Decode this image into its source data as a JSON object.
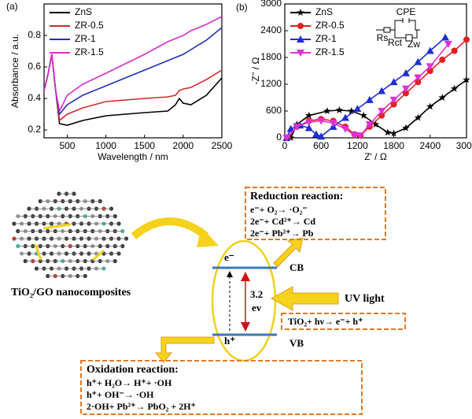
{
  "chart_data": [
    {
      "type": "line",
      "panel": "(a)",
      "x_label": "Wavelength / nm",
      "y_label": "Absorbance / a.u.",
      "x": [
        200,
        250,
        300,
        350,
        400,
        500,
        700,
        1000,
        1500,
        1800,
        1900,
        1950,
        2000,
        2100,
        2300,
        2500
      ],
      "series": [
        {
          "name": "ZnS",
          "color": "#000000",
          "values": [
            0.45,
            0.55,
            0.68,
            0.45,
            0.24,
            0.23,
            0.26,
            0.29,
            0.31,
            0.32,
            0.36,
            0.4,
            0.37,
            0.36,
            0.42,
            0.53
          ]
        },
        {
          "name": "ZR-0.5",
          "color": "#d42a2a",
          "values": [
            0.45,
            0.55,
            0.68,
            0.45,
            0.26,
            0.3,
            0.34,
            0.38,
            0.4,
            0.41,
            0.42,
            0.45,
            0.46,
            0.47,
            0.52,
            0.58
          ]
        },
        {
          "name": "ZR-1",
          "color": "#1f2fb8",
          "values": [
            0.45,
            0.55,
            0.68,
            0.45,
            0.3,
            0.36,
            0.42,
            0.48,
            0.58,
            0.64,
            0.66,
            0.67,
            0.68,
            0.71,
            0.77,
            0.85
          ]
        },
        {
          "name": "ZR-1.5",
          "color": "#d62fc9",
          "values": [
            0.45,
            0.55,
            0.68,
            0.45,
            0.32,
            0.42,
            0.49,
            0.56,
            0.68,
            0.76,
            0.78,
            0.79,
            0.8,
            0.83,
            0.87,
            0.92
          ]
        }
      ],
      "xlim": [
        200,
        2500
      ],
      "xticks": [
        500,
        1000,
        1500,
        2000,
        2500
      ],
      "ylim": [
        0.15,
        1.0
      ],
      "yticks": [
        0.2,
        0.4,
        0.6,
        0.8
      ],
      "grid": false,
      "legend": "top-left"
    },
    {
      "type": "line",
      "panel": "(b)",
      "x_label": "Z' / Ω",
      "y_label": "-Z'' / Ω",
      "annotations": [
        "CPE",
        "Rs",
        "Rct",
        "Zw"
      ],
      "series": [
        {
          "name": "ZnS",
          "color": "#000000",
          "marker": "star",
          "x": [
            100,
            200,
            400,
            700,
            900,
            1100,
            1300,
            1500,
            1700,
            1800,
            2000,
            2200,
            2400,
            2600,
            2800,
            3000
          ],
          "values": [
            0,
            300,
            500,
            600,
            620,
            600,
            500,
            300,
            120,
            100,
            220,
            450,
            700,
            900,
            1100,
            1300
          ]
        },
        {
          "name": "ZR-0.5",
          "color": "#e01f1f",
          "marker": "circle",
          "x": [
            50,
            200,
            400,
            600,
            800,
            1000,
            1150,
            1250,
            1400,
            1600,
            1800,
            2000,
            2200,
            2400,
            2600,
            2800,
            3000
          ],
          "values": [
            0,
            250,
            380,
            420,
            380,
            250,
            80,
            50,
            250,
            500,
            750,
            1000,
            1250,
            1500,
            1750,
            1950,
            2200
          ]
        },
        {
          "name": "ZR-1",
          "color": "#1f2fd0",
          "marker": "triangle",
          "x": [
            30,
            100,
            250,
            400,
            520,
            600,
            800,
            1000,
            1200,
            1400,
            1600,
            1800,
            2000,
            2200,
            2400,
            2650
          ],
          "values": [
            0,
            200,
            280,
            220,
            80,
            30,
            250,
            450,
            650,
            850,
            1050,
            1250,
            1450,
            1700,
            1950,
            2250
          ]
        },
        {
          "name": "ZR-1.5",
          "color": "#e030d8",
          "marker": "triangle-down",
          "x": [
            30,
            200,
            400,
            600,
            800,
            1000,
            1150,
            1250,
            1400,
            1600,
            1800,
            2000,
            2200,
            2400,
            2700
          ],
          "values": [
            0,
            250,
            350,
            380,
            330,
            200,
            60,
            50,
            300,
            600,
            850,
            1100,
            1350,
            1600,
            2100
          ]
        }
      ],
      "xlim": [
        0,
        3000
      ],
      "xticks": [
        0,
        600,
        1200,
        1800,
        2400,
        3000
      ],
      "ylim": [
        0,
        3000
      ],
      "yticks": [
        0,
        600,
        1200,
        1800,
        2400,
        3000
      ],
      "grid": false,
      "legend": "top-left"
    }
  ],
  "diagram": {
    "material_label": "TiO₂/GO nanocomposites",
    "reduction": {
      "title": "Reduction reaction:",
      "lines": [
        "e⁻+ O₂→ ·O₂⁻",
        "2e⁻+ Cd²⁺→ Cd",
        "2e⁻+ Pb²⁺→ Pb"
      ]
    },
    "oxidation": {
      "title": "Oxidation  reaction:",
      "lines": [
        "h⁺+ H₂O→ H⁺+ ·OH",
        "h⁺+ OH⁻→ ·OH",
        "2·OH+ Pb²⁺→ PbO₂ + 2H⁺"
      ]
    },
    "band": {
      "cb_electron": "e⁻",
      "cb": "CB",
      "gap_value": "3.2",
      "gap_unit": "ev",
      "vb_hole": "h⁺",
      "vb": "VB"
    },
    "light": "UV light",
    "excitation": "TiO₂+ hν→ e⁻+ h⁺"
  }
}
